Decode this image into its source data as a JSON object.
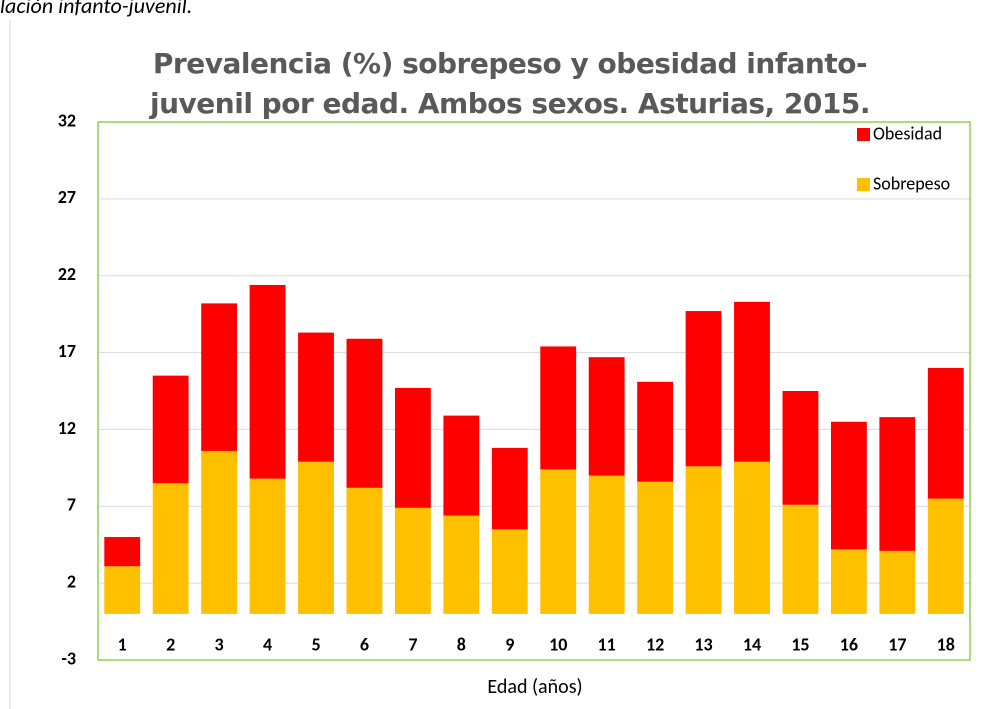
{
  "caption": "lación infanto-juvenil.",
  "chart_data": {
    "type": "stacked_bar",
    "title": "Prevalencia (%) sobrepeso y obesidad  infanto-juvenil por edad. Ambos sexos. Asturias, 2015.",
    "x_label": "Edad (años)",
    "categories": [
      "1",
      "2",
      "3",
      "4",
      "5",
      "6",
      "7",
      "8",
      "9",
      "10",
      "11",
      "12",
      "13",
      "14",
      "15",
      "16",
      "17",
      "18"
    ],
    "series": [
      {
        "name": "Obesidad",
        "color": "#ff0000",
        "values": [
          1.9,
          7.0,
          9.6,
          12.6,
          8.4,
          9.7,
          7.8,
          6.5,
          5.3,
          8.0,
          7.7,
          6.5,
          10.1,
          10.4,
          7.4,
          8.3,
          8.7,
          8.5
        ]
      },
      {
        "name": "Sobrepeso",
        "color": "#ffc000",
        "values": [
          3.1,
          8.5,
          10.6,
          8.8,
          9.9,
          8.2,
          6.9,
          6.4,
          5.5,
          9.4,
          9.0,
          8.6,
          9.6,
          9.9,
          7.1,
          4.2,
          4.1,
          7.5
        ]
      }
    ],
    "ylim": [
      -3,
      32
    ],
    "yticks": [
      -3,
      2,
      7,
      12,
      17,
      22,
      27,
      32
    ],
    "grid": true,
    "legend": "top-right"
  }
}
